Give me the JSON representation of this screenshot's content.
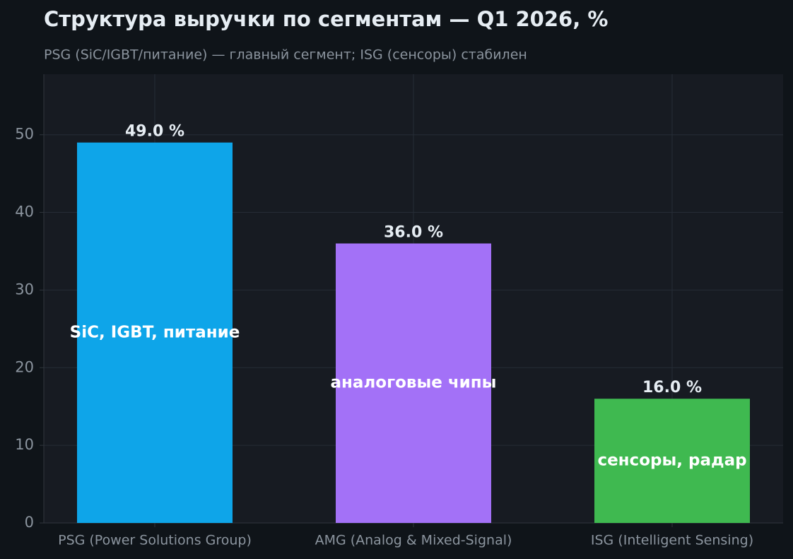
{
  "chart_data": {
    "type": "bar",
    "title": "Структура выручки по сегментам — Q1 2026, %",
    "subtitle": "PSG (SiC/IGBT/питание) — главный сегмент; ISG (сенсоры) стабилен",
    "categories": [
      "PSG (Power Solutions Group)",
      "AMG (Analog & Mixed-Signal)",
      "ISG (Intelligent Sensing)"
    ],
    "values": [
      49.0,
      36.0,
      16.0
    ],
    "value_labels": [
      "49.0 %",
      "36.0 %",
      "16.0 %"
    ],
    "colors": [
      "#0ea5e9",
      "#a371f7",
      "#3fb950"
    ],
    "annotations": [
      "SiC, IGBT, питание",
      "аналоговые чипы",
      "сенсоры, радар"
    ],
    "ylim": [
      0,
      57.8
    ],
    "yticks": [
      0,
      10,
      20,
      30,
      40,
      50
    ],
    "grid": true
  }
}
